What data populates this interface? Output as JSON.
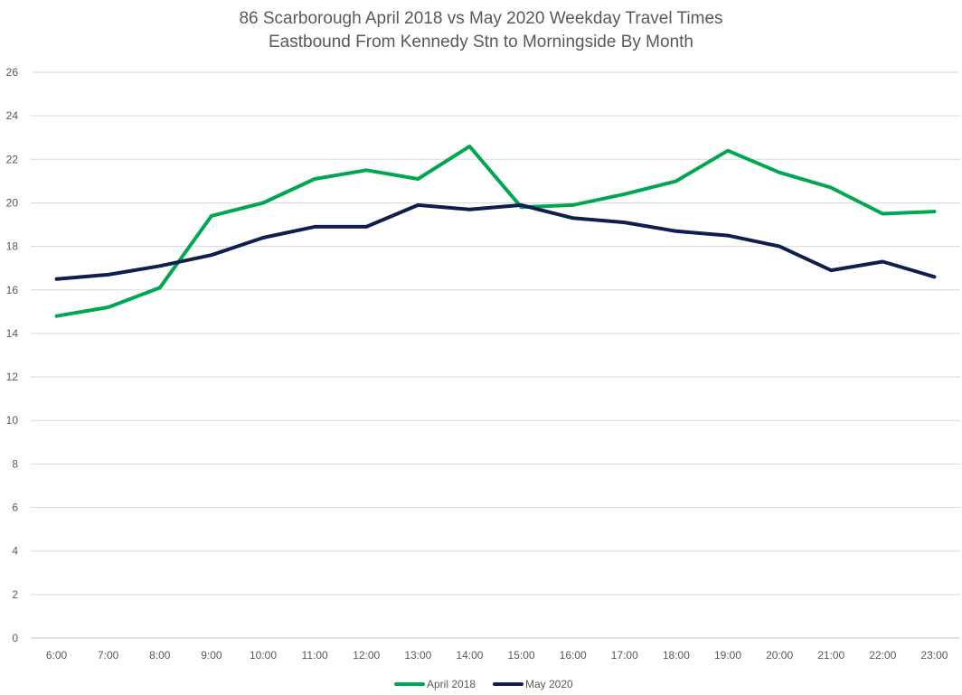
{
  "chart_data": {
    "type": "line",
    "title": "86 Scarborough April 2018 vs May 2020 Weekday Travel Times",
    "subtitle": "Eastbound From Kennedy Stn to Morningside By Month",
    "xlabel": "",
    "ylabel": "",
    "categories": [
      "6:00",
      "7:00",
      "8:00",
      "9:00",
      "10:00",
      "11:00",
      "12:00",
      "13:00",
      "14:00",
      "15:00",
      "16:00",
      "17:00",
      "18:00",
      "19:00",
      "20:00",
      "21:00",
      "22:00",
      "23:00"
    ],
    "ylim": [
      0,
      26
    ],
    "yticks": [
      0,
      2,
      4,
      6,
      8,
      10,
      12,
      14,
      16,
      18,
      20,
      22,
      24,
      26
    ],
    "grid": true,
    "legend_position": "bottom",
    "series": [
      {
        "name": "April 2018",
        "color": "#00a651",
        "values": [
          14.8,
          15.2,
          16.1,
          19.4,
          20.0,
          21.1,
          21.5,
          21.1,
          22.6,
          19.8,
          19.9,
          20.4,
          21.0,
          22.4,
          21.4,
          20.7,
          19.5,
          19.6
        ]
      },
      {
        "name": "May 2020",
        "color": "#0d1f4f",
        "values": [
          16.5,
          16.7,
          17.1,
          17.6,
          18.4,
          18.9,
          18.9,
          19.9,
          19.7,
          19.9,
          19.3,
          19.1,
          18.7,
          18.5,
          18.0,
          16.9,
          17.3,
          16.6
        ]
      }
    ]
  }
}
